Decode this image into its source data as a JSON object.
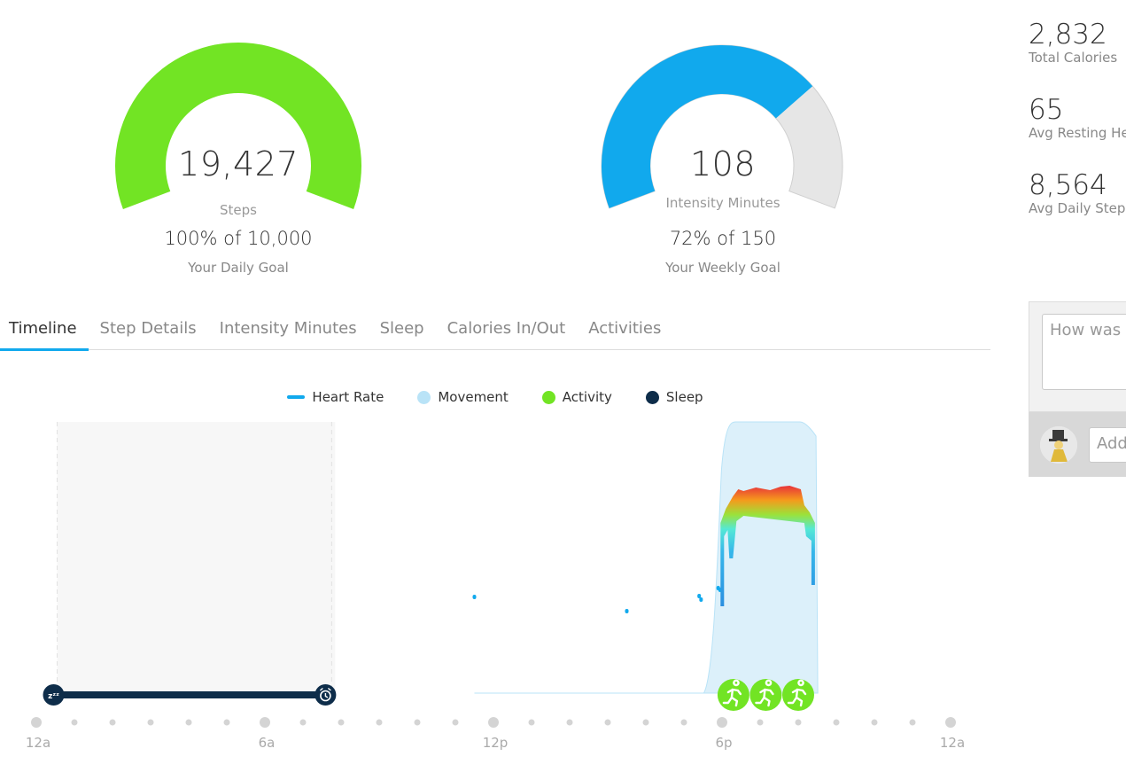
{
  "steps_gauge": {
    "value": "19,427",
    "unit": "Steps",
    "percent_text": "100% of 10,000",
    "goal_text": "Your Daily Goal",
    "fraction": 1.0,
    "color": "#72e424"
  },
  "intensity_gauge": {
    "value": "108",
    "unit": "Intensity Minutes",
    "percent_text": "72% of 150",
    "goal_text": "Your Weekly Goal",
    "fraction": 0.72,
    "color": "#11a9ed",
    "track_color": "#e6e6e6"
  },
  "stats": [
    {
      "value": "2,832",
      "label": "Total Calories"
    },
    {
      "value": "65",
      "label": "Avg Resting Heart Rate"
    },
    {
      "value": "8,564",
      "label": "Avg Daily Steps"
    }
  ],
  "tabs": [
    {
      "label": "Timeline",
      "active": true
    },
    {
      "label": "Step Details",
      "active": false
    },
    {
      "label": "Intensity Minutes",
      "active": false
    },
    {
      "label": "Sleep",
      "active": false
    },
    {
      "label": "Calories In/Out",
      "active": false
    },
    {
      "label": "Activities",
      "active": false
    }
  ],
  "legend": {
    "heart_rate": "Heart Rate",
    "movement": "Movement",
    "activity": "Activity",
    "sleep": "Sleep"
  },
  "colors": {
    "heart_rate": "#11a9ed",
    "movement": "#b9e3f7",
    "activity": "#72e424",
    "sleep": "#0e2d4a"
  },
  "timeline": {
    "time_labels": [
      "12a",
      "6a",
      "12p",
      "6p",
      "12a"
    ],
    "sleep_start_hour": 0.5,
    "sleep_end_hour": 7.8,
    "sleep_start_icon": "zzz-icon",
    "sleep_end_icon": "alarm-clock-icon",
    "activity_hours": [
      18.3,
      19.15,
      20.0
    ],
    "activity_icon": "running-person-icon",
    "heart_points_hours": [
      11.5,
      15.5,
      17.4,
      17.45,
      17.9,
      17.95
    ],
    "heart_block_start_hour": 18.1,
    "heart_block_end_hour": 20.3,
    "movement_start_hour": 17.8,
    "movement_end_hour": 20.7
  },
  "notes": {
    "placeholder": "How was your day?",
    "comment_placeholder": "Add a comment"
  }
}
